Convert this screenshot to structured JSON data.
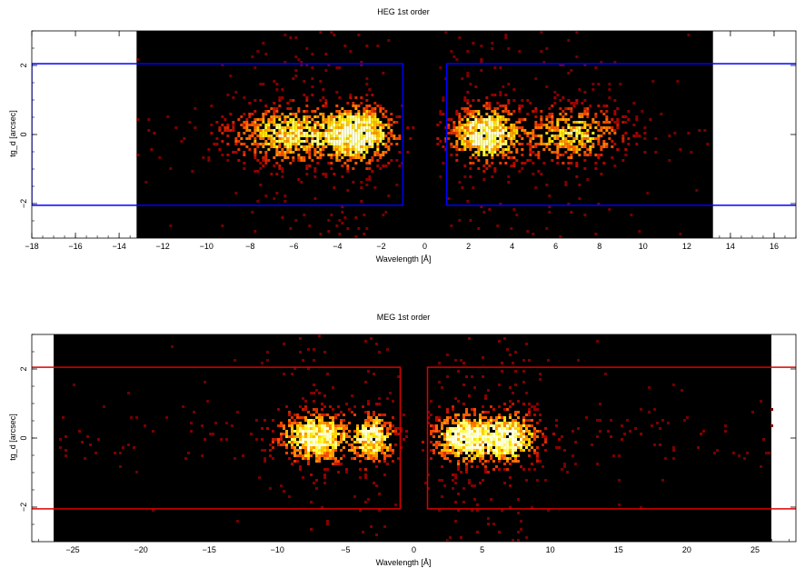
{
  "chart_data": [
    {
      "type": "heatmap",
      "title": "HEG 1st order",
      "xlabel": "Wavelength [Å]",
      "ylabel": "tg_d [arcsec]",
      "xlim": [
        -18,
        17
      ],
      "ylim": [
        -3,
        3
      ],
      "data_extent_x": [
        -13.2,
        13.2
      ],
      "xticks": [
        -18,
        -16,
        -14,
        -12,
        -10,
        -8,
        -6,
        -4,
        -2,
        0,
        2,
        4,
        6,
        8,
        10,
        12,
        14,
        16
      ],
      "yticks": [
        -2,
        0,
        2
      ],
      "colormap": "black-red-yellow-white (heat)",
      "clusters": [
        {
          "center": -3.0,
          "spread": 1.0,
          "weight": 3.0
        },
        {
          "center": -6.2,
          "spread": 1.6,
          "weight": 2.2
        },
        {
          "center": 2.8,
          "spread": 1.0,
          "weight": 3.0
        },
        {
          "center": 6.8,
          "spread": 1.3,
          "weight": 2.0
        }
      ],
      "row_spread": 0.5,
      "regions": [
        {
          "x": [
            -18,
            -1
          ],
          "y": [
            -2.05,
            2.05
          ],
          "color": "#0000ff"
        },
        {
          "x": [
            1,
            18
          ],
          "y": [
            -2.05,
            2.05
          ],
          "color": "#0000ff"
        }
      ],
      "grid": false,
      "legend": "none"
    },
    {
      "type": "heatmap",
      "title": "MEG 1st order",
      "xlabel": "Wavelength [Å]",
      "ylabel": "tg_d [arcsec]",
      "xlim": [
        -28,
        28
      ],
      "ylim": [
        -3,
        3
      ],
      "data_extent_x": [
        -26.4,
        26.2
      ],
      "xticks": [
        -25,
        -20,
        -15,
        -10,
        -5,
        0,
        5,
        10,
        15,
        20,
        25
      ],
      "yticks": [
        -2,
        0,
        2
      ],
      "colormap": "black-red-yellow-white (heat)",
      "clusters": [
        {
          "center": -7.2,
          "spread": 1.6,
          "weight": 3.0
        },
        {
          "center": -3.0,
          "spread": 1.0,
          "weight": 2.6
        },
        {
          "center": 3.5,
          "spread": 1.3,
          "weight": 2.8
        },
        {
          "center": 6.8,
          "spread": 1.5,
          "weight": 3.0
        }
      ],
      "row_spread": 0.45,
      "regions": [
        {
          "x": [
            -30,
            -1
          ],
          "y": [
            -2.05,
            2.05
          ],
          "color": "#dd0000"
        },
        {
          "x": [
            1,
            30
          ],
          "y": [
            -2.05,
            2.05
          ],
          "color": "#dd0000"
        }
      ],
      "grid": false,
      "legend": "none"
    }
  ]
}
